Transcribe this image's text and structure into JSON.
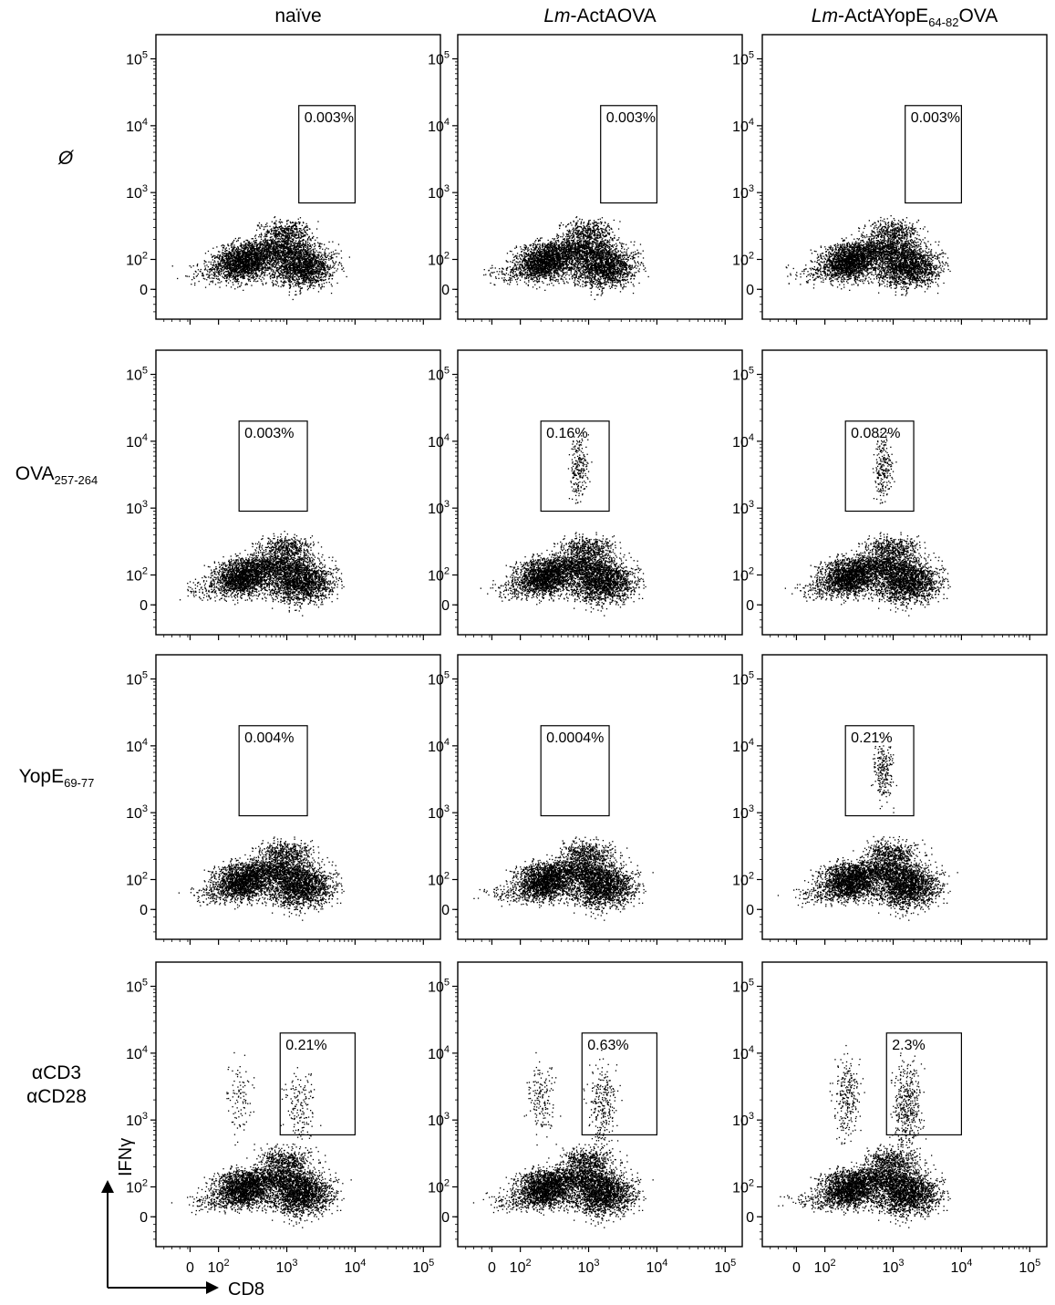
{
  "figure": {
    "column_headers": [
      "naïve",
      "Lm-ActAOVA",
      "Lm-ActAYopE64-82OVA"
    ],
    "row_labels": [
      "Ø",
      "OVA257-264",
      "YopE69-77",
      "αCD3 αCD28"
    ],
    "x_axis_label": "CD8",
    "y_axis_label": "IFNγ",
    "x_tick_labels": [
      "0",
      "10^2",
      "10^3",
      "10^4",
      "10^5"
    ],
    "y_tick_labels": [
      "10^5",
      "10^4",
      "10^3",
      "10^2",
      "0"
    ]
  },
  "chart_data": {
    "type": "scatter",
    "plot": "flow cytometry dot plot grid (4 rows × 3 columns)",
    "xlabel": "CD8",
    "ylabel": "IFNγ",
    "x_scale": "biexponential",
    "y_scale": "biexponential",
    "x_ticks": [
      "0",
      "10^2",
      "10^3",
      "10^4",
      "10^5"
    ],
    "y_ticks": [
      "0",
      "10^2",
      "10^3",
      "10^4",
      "10^5"
    ],
    "columns": [
      "naïve",
      "Lm-ActAOVA",
      "Lm-ActAYopE64-82OVA"
    ],
    "rows": [
      "Ø",
      "OVA257-264",
      "YopE69-77",
      "αCD3 αCD28"
    ],
    "gate_percentages": [
      [
        "0.003%",
        "0.003%",
        "0.003%"
      ],
      [
        "0.003%",
        "0.16%",
        "0.082%"
      ],
      [
        "0.004%",
        "0.0004%",
        "0.21%"
      ],
      [
        "0.21%",
        "0.63%",
        "2.3%"
      ]
    ],
    "gate_x_range": [
      [
        [
          1500,
          10000
        ],
        [
          1500,
          10000
        ],
        [
          1500,
          10000
        ]
      ],
      [
        [
          200,
          2000
        ],
        [
          200,
          2000
        ],
        [
          200,
          2000
        ]
      ],
      [
        [
          200,
          2000
        ],
        [
          200,
          2000
        ],
        [
          200,
          2000
        ]
      ],
      [
        [
          800,
          10000
        ],
        [
          800,
          10000
        ],
        [
          800,
          10000
        ]
      ]
    ],
    "gate_y_range": [
      [
        [
          700,
          20000
        ],
        [
          700,
          20000
        ],
        [
          700,
          20000
        ]
      ],
      [
        [
          900,
          20000
        ],
        [
          900,
          20000
        ],
        [
          900,
          20000
        ]
      ],
      [
        [
          900,
          20000
        ],
        [
          900,
          20000
        ],
        [
          900,
          20000
        ]
      ],
      [
        [
          600,
          20000
        ],
        [
          600,
          20000
        ],
        [
          600,
          20000
        ]
      ]
    ]
  }
}
